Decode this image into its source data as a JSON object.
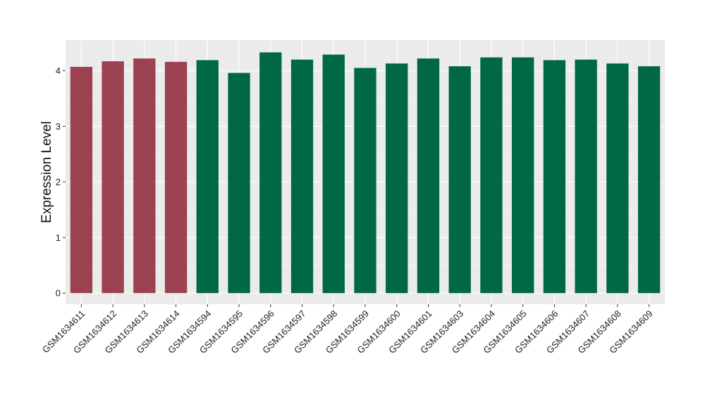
{
  "chart_data": {
    "type": "bar",
    "title": "",
    "xlabel": "",
    "ylabel": "Expression Level",
    "ylim": [
      -0.2,
      4.55
    ],
    "yticks": [
      0,
      1,
      2,
      3,
      4
    ],
    "grid": true,
    "legend": "none",
    "colors": {
      "panel": "#ebebeb",
      "grid_major": "#ffffff",
      "group_a": "#9c4150",
      "group_b": "#006847",
      "tick_text": "#222222"
    },
    "categories": [
      "GSM1634611",
      "GSM1634612",
      "GSM1634613",
      "GSM1634614",
      "GSM1634594",
      "GSM1634595",
      "GSM1634596",
      "GSM1634597",
      "GSM1634598",
      "GSM1634599",
      "GSM1634600",
      "GSM1634601",
      "GSM1634603",
      "GSM1634604",
      "GSM1634605",
      "GSM1634606",
      "GSM1634607",
      "GSM1634608",
      "GSM1634609"
    ],
    "values": [
      4.07,
      4.17,
      4.22,
      4.16,
      4.19,
      3.96,
      4.33,
      4.2,
      4.29,
      4.05,
      4.13,
      4.22,
      4.08,
      4.24,
      4.24,
      4.19,
      4.2,
      4.13,
      4.08
    ],
    "groups": [
      "a",
      "a",
      "a",
      "a",
      "b",
      "b",
      "b",
      "b",
      "b",
      "b",
      "b",
      "b",
      "b",
      "b",
      "b",
      "b",
      "b",
      "b",
      "b"
    ]
  }
}
